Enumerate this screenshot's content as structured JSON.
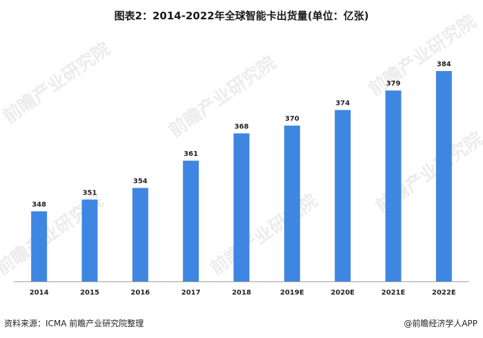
{
  "title": "图表2：2014-2022年全球智能卡出货量(单位：亿张)",
  "source": "资料来源：ICMA 前瞻产业研究院整理",
  "credit": "@前瞻经济学人APP",
  "watermark": "前瞻产业研究院",
  "colors": {
    "bar": "#3f86e2",
    "axis": "#a0a0a0",
    "label": "#222222"
  },
  "chart_data": {
    "type": "bar",
    "title": "图表2：2014-2022年全球智能卡出货量(单位：亿张)",
    "categories": [
      "2014",
      "2015",
      "2016",
      "2017",
      "2018",
      "2019E",
      "2020E",
      "2021E",
      "2022E"
    ],
    "values": [
      348,
      351,
      354,
      361,
      368,
      370,
      374,
      379,
      384
    ],
    "xlabel": "",
    "ylabel": "",
    "grid": false,
    "legend": "none"
  }
}
